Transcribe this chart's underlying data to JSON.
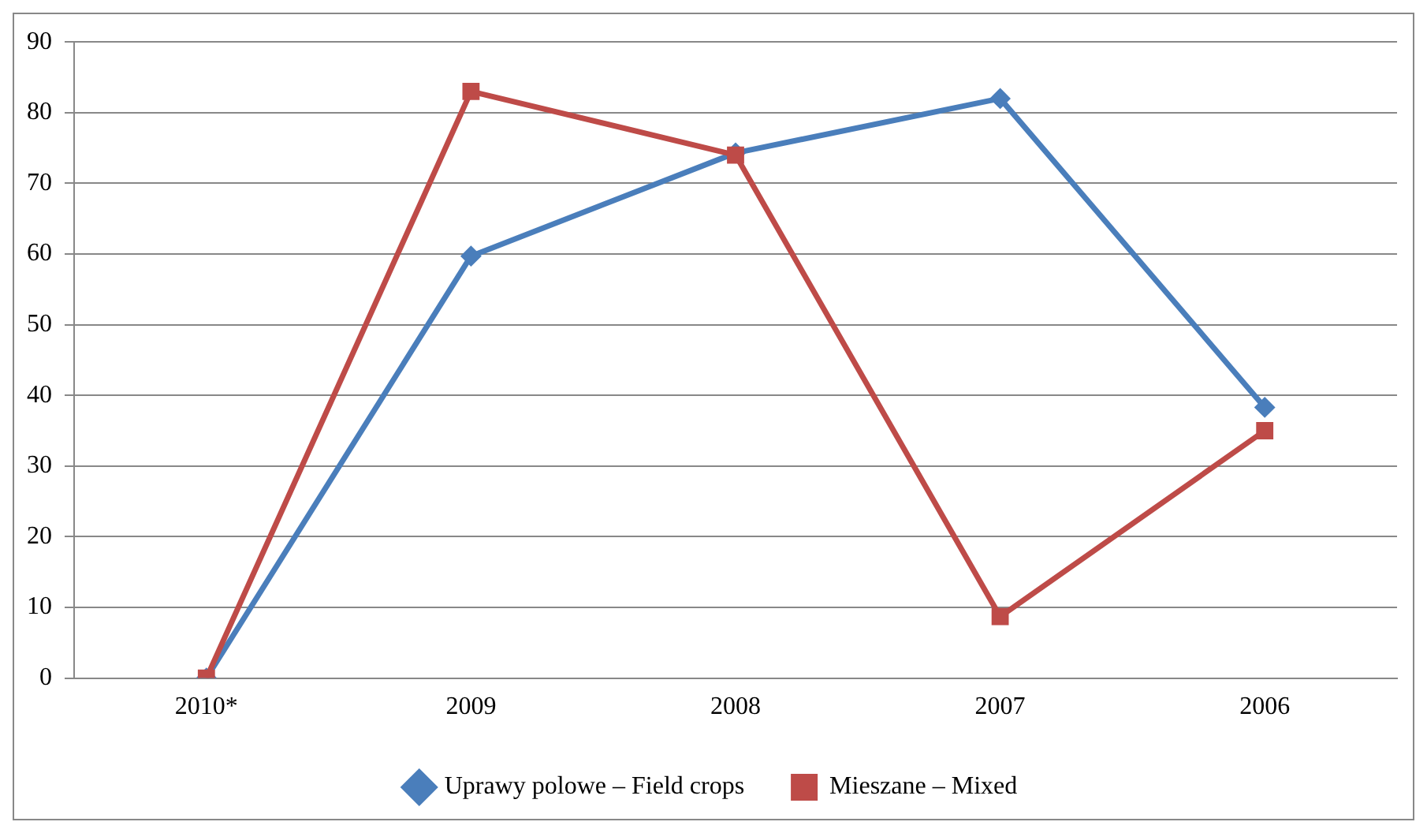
{
  "chart_data": {
    "type": "line",
    "categories": [
      "2010*",
      "2009",
      "2008",
      "2007",
      "2006"
    ],
    "series": [
      {
        "name": "Uprawy polowe – Field crops",
        "color": "#4a7ebb",
        "values": [
          0,
          59.7,
          74.3,
          82,
          38.3
        ],
        "marker": "diamond"
      },
      {
        "name": "Mieszane – Mixed",
        "color": "#be4b48",
        "values": [
          0,
          83,
          74,
          8.7,
          35
        ],
        "marker": "square"
      }
    ],
    "ylim": [
      0,
      90
    ],
    "yticks": [
      0,
      10,
      20,
      30,
      40,
      50,
      60,
      70,
      80,
      90
    ],
    "grid": "y",
    "legend": "bottom",
    "line_style": "solid"
  }
}
